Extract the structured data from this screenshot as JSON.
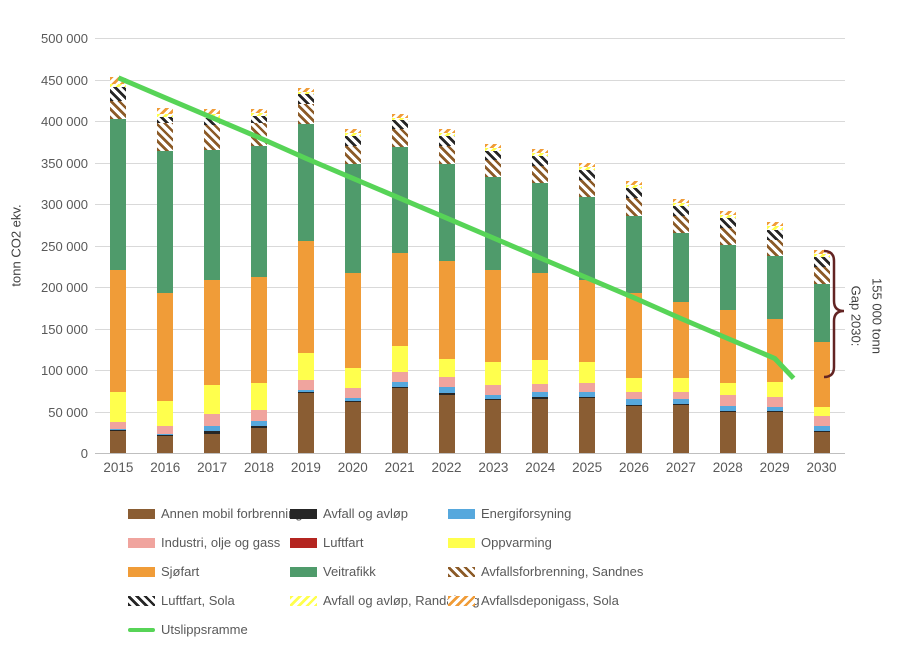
{
  "y_axis": {
    "title": "tonn CO2 ekv.",
    "tick_labels": [
      "0",
      "50 000",
      "100 000",
      "150 000",
      "200 000",
      "250 000",
      "300 000",
      "350 000",
      "400 000",
      "450 000",
      "500 000"
    ]
  },
  "annotation": {
    "line1": "Gap 2030:",
    "line2": "155 000 tonn",
    "brace_color": "#632423"
  },
  "colors": {
    "gridline": "#d9d9d9",
    "axis_text": "#595959",
    "background": "#ffffff"
  },
  "chart_data": {
    "type": "bar",
    "stacked": true,
    "grid": true,
    "legend_position": "bottom",
    "ylabel": "tonn CO2 ekv.",
    "ylim": [
      0,
      500000
    ],
    "ytick_step": 50000,
    "categories": [
      "2015",
      "2016",
      "2017",
      "2018",
      "2019",
      "2020",
      "2021",
      "2022",
      "2023",
      "2024",
      "2025",
      "2026",
      "2027",
      "2028",
      "2029",
      "2030"
    ],
    "series": [
      {
        "name": "Annen mobil forbrenning",
        "color": "#8a5d33",
        "pattern": "solid",
        "values": [
          26000,
          21000,
          23000,
          30000,
          72000,
          61000,
          78000,
          70000,
          64000,
          65000,
          66000,
          57000,
          58000,
          50000,
          50000,
          26000
        ]
      },
      {
        "name": "Avfall og avløp",
        "color": "#262626",
        "pattern": "solid",
        "values": [
          2000,
          1000,
          3000,
          2000,
          1000,
          2000,
          2000,
          2000,
          1000,
          2000,
          1000,
          1000,
          1000,
          1000,
          1000,
          1000
        ]
      },
      {
        "name": "Energiforsyning",
        "color": "#56a8dd",
        "pattern": "solid",
        "values": [
          1000,
          1000,
          6000,
          7000,
          3000,
          3000,
          6000,
          7000,
          5000,
          6000,
          7000,
          7000,
          6000,
          6000,
          5000,
          5000
        ]
      },
      {
        "name": "Industri, olje og gass",
        "color": "#f0a49e",
        "pattern": "solid",
        "values": [
          8000,
          9000,
          15000,
          13000,
          12000,
          12000,
          11000,
          13000,
          12000,
          10000,
          10000,
          9000,
          9000,
          13000,
          12000,
          12000
        ]
      },
      {
        "name": "Luftfart",
        "color": "#b42520",
        "pattern": "solid",
        "values": [
          0,
          0,
          0,
          0,
          0,
          0,
          0,
          0,
          0,
          0,
          0,
          0,
          0,
          0,
          0,
          0
        ]
      },
      {
        "name": "Oppvarming",
        "color": "#ffff4d",
        "pattern": "solid",
        "values": [
          37000,
          31000,
          35000,
          32000,
          32000,
          24000,
          32000,
          21000,
          28000,
          29000,
          26000,
          16000,
          16000,
          14000,
          17000,
          11000
        ]
      },
      {
        "name": "Sjøfart",
        "color": "#f09c38",
        "pattern": "solid",
        "values": [
          146000,
          130000,
          127000,
          128000,
          135000,
          115000,
          112000,
          118000,
          110000,
          105000,
          98000,
          103000,
          92000,
          88000,
          77000,
          79000
        ]
      },
      {
        "name": "Veitrafikk",
        "color": "#4f9b6b",
        "pattern": "solid",
        "values": [
          182000,
          171000,
          156000,
          158000,
          141000,
          131000,
          128000,
          117000,
          113000,
          108000,
          100000,
          93000,
          83000,
          79000,
          75000,
          70000
        ]
      },
      {
        "name": "Avfallsforbrenning, Sandnes",
        "color": "#8c5b28",
        "pattern": "hatch-back",
        "values": [
          22000,
          33000,
          30000,
          28000,
          24000,
          22000,
          21000,
          22000,
          20000,
          21000,
          21000,
          21000,
          20000,
          20000,
          20000,
          20000
        ]
      },
      {
        "name": "Luftfart, Sola",
        "color": "#262626",
        "pattern": "hatch-back",
        "values": [
          17000,
          8000,
          9000,
          8000,
          12000,
          12000,
          11000,
          12000,
          11000,
          12000,
          12000,
          12000,
          12000,
          12000,
          12000,
          12000
        ]
      },
      {
        "name": "Avfall og avløp, Randaberg",
        "color": "#ffff4d",
        "pattern": "hatch-fwd",
        "values": [
          4000,
          4000,
          4000,
          4000,
          3000,
          3000,
          3000,
          3000,
          3000,
          3000,
          4000,
          4000,
          4000,
          4000,
          4000,
          4000
        ]
      },
      {
        "name": "Avfallsdeponigass, Sola",
        "color": "#f09c38",
        "pattern": "hatch-fwd",
        "values": [
          8000,
          7000,
          6000,
          5000,
          5000,
          5000,
          5000,
          5000,
          5000,
          5000,
          5000,
          5000,
          5000,
          5000,
          5000,
          5000
        ]
      }
    ],
    "line_series": {
      "name": "Utslippsramme",
      "color": "#57d457",
      "values": [
        452000,
        428000,
        404000,
        380000,
        355000,
        331000,
        307000,
        283000,
        259000,
        235000,
        211000,
        187000,
        162000,
        138000,
        114000,
        90000
      ]
    },
    "annotation": {
      "label": "Gap 2030: 155 000 tonn",
      "bar_total_2030": 245000,
      "line_2030": 90000,
      "gap": 155000
    }
  }
}
